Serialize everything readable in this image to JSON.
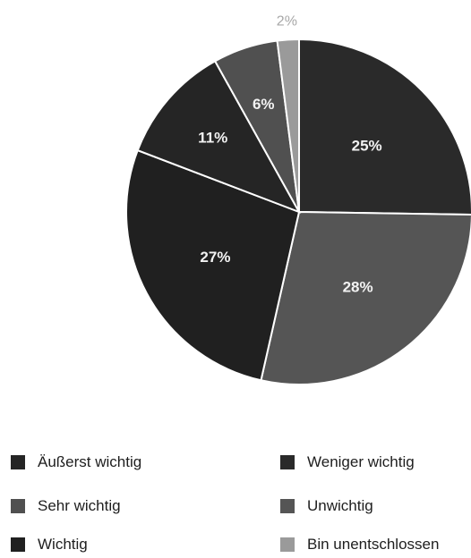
{
  "chart_data": {
    "type": "pie",
    "title": "",
    "slices": [
      {
        "label": "Weniger wichtig",
        "value": 25,
        "value_label": "25%",
        "color": "#2a2a2a"
      },
      {
        "label": "Unwichtig",
        "value": 28,
        "value_label": "28%",
        "color": "#555555"
      },
      {
        "label": "Wichtig",
        "value": 27,
        "value_label": "27%",
        "color": "#202020"
      },
      {
        "label": "Äußerst wichtig",
        "value": 11,
        "value_label": "11%",
        "color": "#252525"
      },
      {
        "label": "Sehr wichtig",
        "value": 6,
        "value_label": "6%",
        "color": "#505050"
      },
      {
        "label": "Bin unentschlossen",
        "value": 2,
        "value_label": "2%",
        "color": "#9a9a9a"
      }
    ],
    "legend": [
      {
        "label": "Äußerst wichtig",
        "color": "#252525"
      },
      {
        "label": "Weniger wichtig",
        "color": "#2a2a2a"
      },
      {
        "label": "Sehr wichtig",
        "color": "#505050"
      },
      {
        "label": "Unwichtig",
        "color": "#555555"
      },
      {
        "label": "Wichtig",
        "color": "#202020"
      },
      {
        "label": "Bin unentschlossen",
        "color": "#9a9a9a"
      }
    ],
    "legend_placement": "bottom"
  }
}
